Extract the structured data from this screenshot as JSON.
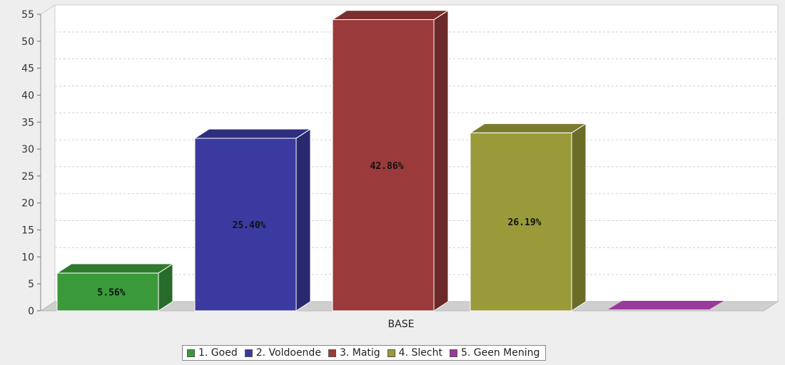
{
  "chart_data": {
    "type": "bar",
    "title": "",
    "xlabel": "",
    "ylabel": "",
    "categories": [
      "BASE"
    ],
    "ylim": [
      0,
      55
    ],
    "yticks": [
      0,
      5,
      10,
      15,
      20,
      25,
      30,
      35,
      40,
      45,
      50,
      55
    ],
    "grid": true,
    "legend_position": "bottom",
    "series": [
      {
        "name": "1. Goed",
        "values": [
          7
        ],
        "label": "5.56%",
        "color": "#3a9a3a"
      },
      {
        "name": "2. Voldoende",
        "values": [
          32
        ],
        "label": "25.40%",
        "color": "#3a3aa0"
      },
      {
        "name": "3. Matig",
        "values": [
          54
        ],
        "label": "42.86%",
        "color": "#9a3a3a"
      },
      {
        "name": "4. Slecht",
        "values": [
          33
        ],
        "label": "26.19%",
        "color": "#9a9a3a"
      },
      {
        "name": "5. Geen Mening",
        "values": [
          0
        ],
        "label": "",
        "color": "#9a3a9a"
      }
    ]
  }
}
